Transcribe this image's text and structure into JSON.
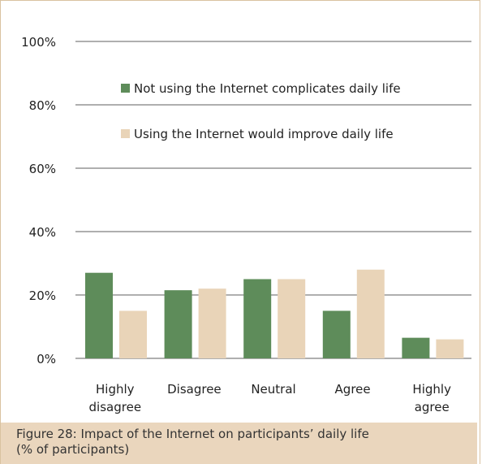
{
  "caption": {
    "line1": "Figure 28: Impact of the Internet on participants’ daily life",
    "line2": "(% of participants)"
  },
  "colors": {
    "series_1": "#5e8c5a",
    "series_2": "#e9d4b8",
    "grid": "#7f7f7f",
    "text": "#222222"
  },
  "chart_data": {
    "type": "bar",
    "categories": [
      [
        "Highly",
        "disagree"
      ],
      [
        "Disagree"
      ],
      [
        "Neutral"
      ],
      [
        "Agree"
      ],
      [
        "Highly",
        "agree"
      ]
    ],
    "series": [
      {
        "name": "Not using the Internet complicates daily life",
        "values": [
          27,
          21.5,
          25,
          15,
          6.5
        ]
      },
      {
        "name": "Using the Internet would improve daily life",
        "values": [
          15,
          22,
          25,
          28,
          6
        ]
      }
    ],
    "ylim": [
      0,
      100
    ],
    "yticks": [
      "0%",
      "20%",
      "40%",
      "60%",
      "80%",
      "100%"
    ],
    "grid": true,
    "legend": "inside-top-left"
  }
}
